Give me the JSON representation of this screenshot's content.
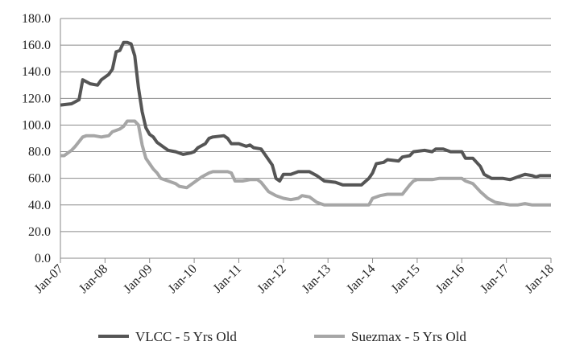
{
  "chart_data": {
    "type": "line",
    "title": "",
    "xlabel": "",
    "ylabel": "",
    "ylim": [
      0,
      180
    ],
    "y_ticks": [
      "0.0",
      "20.0",
      "40.0",
      "60.0",
      "80.0",
      "100.0",
      "120.0",
      "140.0",
      "160.0",
      "180.0"
    ],
    "x_ticks": [
      "Jan-07",
      "Jan-08",
      "Jan-09",
      "Jan-10",
      "Jan-11",
      "Jan-12",
      "Jan-13",
      "Jan-14",
      "Jan-15",
      "Jan-16",
      "Jan-17",
      "Jan-18"
    ],
    "xlim": [
      "2007-01",
      "2018-01"
    ],
    "grid": "horizontal",
    "legend": "bottom",
    "series": [
      {
        "name": "VLCC - 5 Yrs Old",
        "color": "#555555",
        "points": [
          [
            "2007-01",
            115
          ],
          [
            "2007-04",
            116
          ],
          [
            "2007-06",
            119
          ],
          [
            "2007-07",
            134
          ],
          [
            "2007-09",
            131
          ],
          [
            "2007-11",
            130
          ],
          [
            "2007-12",
            134
          ],
          [
            "2008-02",
            138
          ],
          [
            "2008-03",
            142
          ],
          [
            "2008-04",
            155
          ],
          [
            "2008-05",
            156
          ],
          [
            "2008-06",
            162
          ],
          [
            "2008-07",
            162
          ],
          [
            "2008-08",
            161
          ],
          [
            "2008-09",
            152
          ],
          [
            "2008-10",
            128
          ],
          [
            "2008-11",
            110
          ],
          [
            "2008-12",
            98
          ],
          [
            "2009-01",
            93
          ],
          [
            "2009-02",
            91
          ],
          [
            "2009-03",
            87
          ],
          [
            "2009-05",
            83
          ],
          [
            "2009-06",
            81
          ],
          [
            "2009-08",
            80
          ],
          [
            "2009-10",
            78
          ],
          [
            "2009-12",
            79
          ],
          [
            "2010-01",
            80
          ],
          [
            "2010-02",
            83
          ],
          [
            "2010-04",
            86
          ],
          [
            "2010-05",
            90
          ],
          [
            "2010-06",
            91
          ],
          [
            "2010-09",
            92
          ],
          [
            "2010-10",
            90
          ],
          [
            "2010-11",
            86
          ],
          [
            "2011-01",
            86
          ],
          [
            "2011-03",
            84
          ],
          [
            "2011-04",
            85
          ],
          [
            "2011-05",
            83
          ],
          [
            "2011-07",
            82
          ],
          [
            "2011-08",
            78
          ],
          [
            "2011-10",
            70
          ],
          [
            "2011-11",
            60
          ],
          [
            "2011-12",
            58
          ],
          [
            "2012-01",
            63
          ],
          [
            "2012-03",
            63
          ],
          [
            "2012-05",
            65
          ],
          [
            "2012-08",
            65
          ],
          [
            "2012-10",
            62
          ],
          [
            "2012-12",
            58
          ],
          [
            "2013-03",
            57
          ],
          [
            "2013-05",
            55
          ],
          [
            "2013-08",
            55
          ],
          [
            "2013-10",
            55
          ],
          [
            "2013-12",
            60
          ],
          [
            "2014-01",
            64
          ],
          [
            "2014-02",
            71
          ],
          [
            "2014-04",
            72
          ],
          [
            "2014-05",
            74
          ],
          [
            "2014-08",
            73
          ],
          [
            "2014-09",
            76
          ],
          [
            "2014-11",
            77
          ],
          [
            "2014-12",
            80
          ],
          [
            "2015-03",
            81
          ],
          [
            "2015-05",
            80
          ],
          [
            "2015-06",
            82
          ],
          [
            "2015-08",
            82
          ],
          [
            "2015-10",
            80
          ],
          [
            "2016-01",
            80
          ],
          [
            "2016-02",
            75
          ],
          [
            "2016-04",
            75
          ],
          [
            "2016-06",
            69
          ],
          [
            "2016-07",
            63
          ],
          [
            "2016-09",
            60
          ],
          [
            "2016-12",
            60
          ],
          [
            "2017-02",
            59
          ],
          [
            "2017-04",
            61
          ],
          [
            "2017-06",
            63
          ],
          [
            "2017-08",
            62
          ],
          [
            "2017-09",
            61
          ],
          [
            "2017-10",
            62
          ],
          [
            "2018-01",
            62
          ]
        ]
      },
      {
        "name": "Suezmax - 5 Yrs Old",
        "color": "#a6a6a6",
        "points": [
          [
            "2007-01",
            77
          ],
          [
            "2007-02",
            77
          ],
          [
            "2007-04",
            81
          ],
          [
            "2007-05",
            84
          ],
          [
            "2007-07",
            91
          ],
          [
            "2007-08",
            92
          ],
          [
            "2007-10",
            92
          ],
          [
            "2007-12",
            91
          ],
          [
            "2008-02",
            92
          ],
          [
            "2008-03",
            95
          ],
          [
            "2008-05",
            97
          ],
          [
            "2008-06",
            99
          ],
          [
            "2008-07",
            103
          ],
          [
            "2008-09",
            103
          ],
          [
            "2008-10",
            100
          ],
          [
            "2008-11",
            85
          ],
          [
            "2008-12",
            75
          ],
          [
            "2009-02",
            67
          ],
          [
            "2009-03",
            64
          ],
          [
            "2009-04",
            60
          ],
          [
            "2009-06",
            58
          ],
          [
            "2009-08",
            56
          ],
          [
            "2009-09",
            54
          ],
          [
            "2009-11",
            53
          ],
          [
            "2010-01",
            57
          ],
          [
            "2010-03",
            61
          ],
          [
            "2010-05",
            64
          ],
          [
            "2010-06",
            65
          ],
          [
            "2010-10",
            65
          ],
          [
            "2010-11",
            64
          ],
          [
            "2010-12",
            58
          ],
          [
            "2011-02",
            58
          ],
          [
            "2011-04",
            59
          ],
          [
            "2011-06",
            59
          ],
          [
            "2011-07",
            57
          ],
          [
            "2011-09",
            50
          ],
          [
            "2011-11",
            47
          ],
          [
            "2012-01",
            45
          ],
          [
            "2012-03",
            44
          ],
          [
            "2012-05",
            45
          ],
          [
            "2012-06",
            47
          ],
          [
            "2012-08",
            46
          ],
          [
            "2012-10",
            42
          ],
          [
            "2012-12",
            40
          ],
          [
            "2013-12",
            40
          ],
          [
            "2014-01",
            45
          ],
          [
            "2014-03",
            47
          ],
          [
            "2014-05",
            48
          ],
          [
            "2014-09",
            48
          ],
          [
            "2014-11",
            55
          ],
          [
            "2014-12",
            58
          ],
          [
            "2015-01",
            59
          ],
          [
            "2015-02",
            59
          ],
          [
            "2015-05",
            59
          ],
          [
            "2015-07",
            60
          ],
          [
            "2015-12",
            60
          ],
          [
            "2016-01",
            60
          ],
          [
            "2016-02",
            58
          ],
          [
            "2016-04",
            56
          ],
          [
            "2016-06",
            50
          ],
          [
            "2016-08",
            45
          ],
          [
            "2016-10",
            42
          ],
          [
            "2016-12",
            41
          ],
          [
            "2017-02",
            40
          ],
          [
            "2017-04",
            40
          ],
          [
            "2017-06",
            41
          ],
          [
            "2017-08",
            40
          ],
          [
            "2018-01",
            40
          ]
        ]
      }
    ]
  }
}
